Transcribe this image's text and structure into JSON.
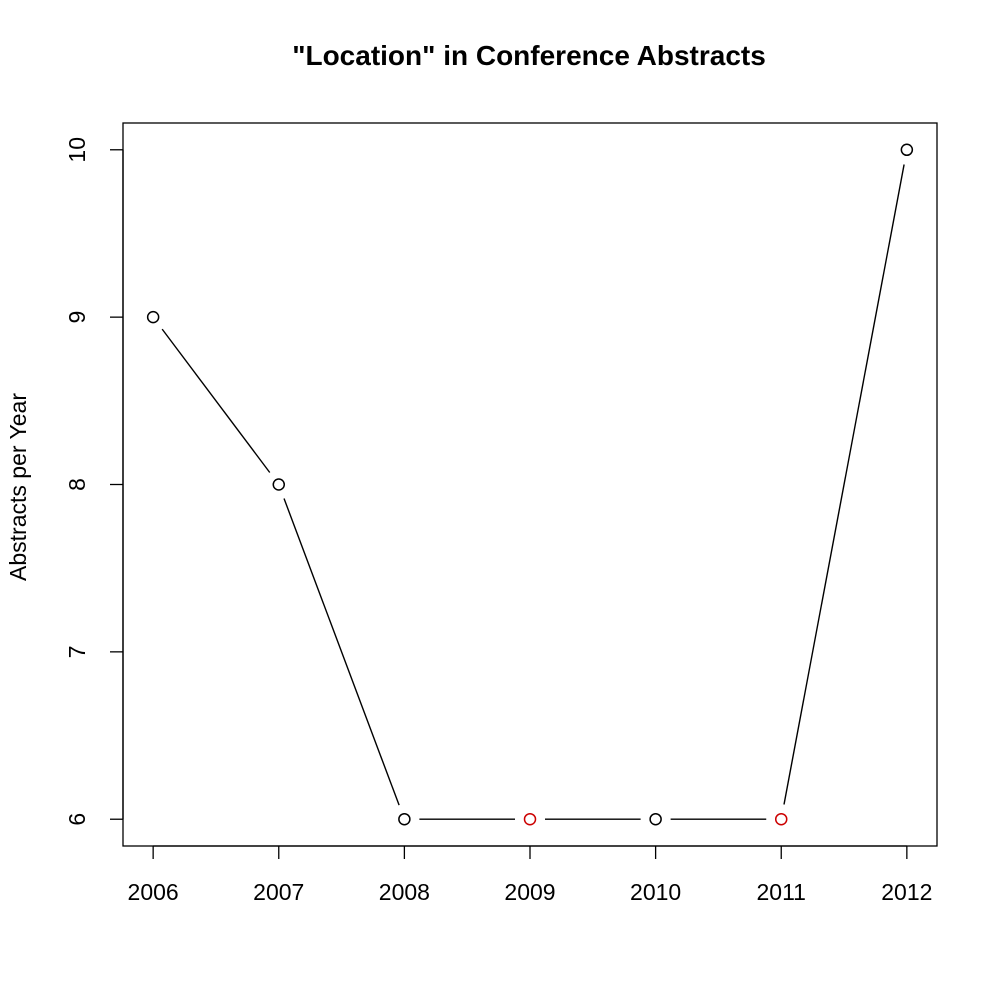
{
  "chart_data": {
    "type": "line",
    "title": "\"Location\" in Conference Abstracts",
    "xlabel": "",
    "ylabel": "Abstracts per Year",
    "x": [
      2006,
      2007,
      2008,
      2009,
      2010,
      2011,
      2012
    ],
    "x_tick_labels": [
      "2006",
      "2007",
      "2008",
      "2009",
      "2010",
      "2011",
      "2012"
    ],
    "series": [
      {
        "values": [
          9,
          8,
          6,
          6,
          6,
          6,
          10
        ],
        "line_color": "#000000",
        "point_colors": [
          "#000000",
          "#000000",
          "#000000",
          "#cc0000",
          "#000000",
          "#cc0000",
          "#000000"
        ]
      }
    ],
    "y_ticks": [
      6,
      7,
      8,
      9,
      10
    ],
    "y_tick_labels": [
      "6",
      "7",
      "8",
      "9",
      "10"
    ],
    "xlim": [
      2005.76,
      2012.24
    ],
    "ylim": [
      5.84,
      10.16
    ],
    "grid": false
  }
}
